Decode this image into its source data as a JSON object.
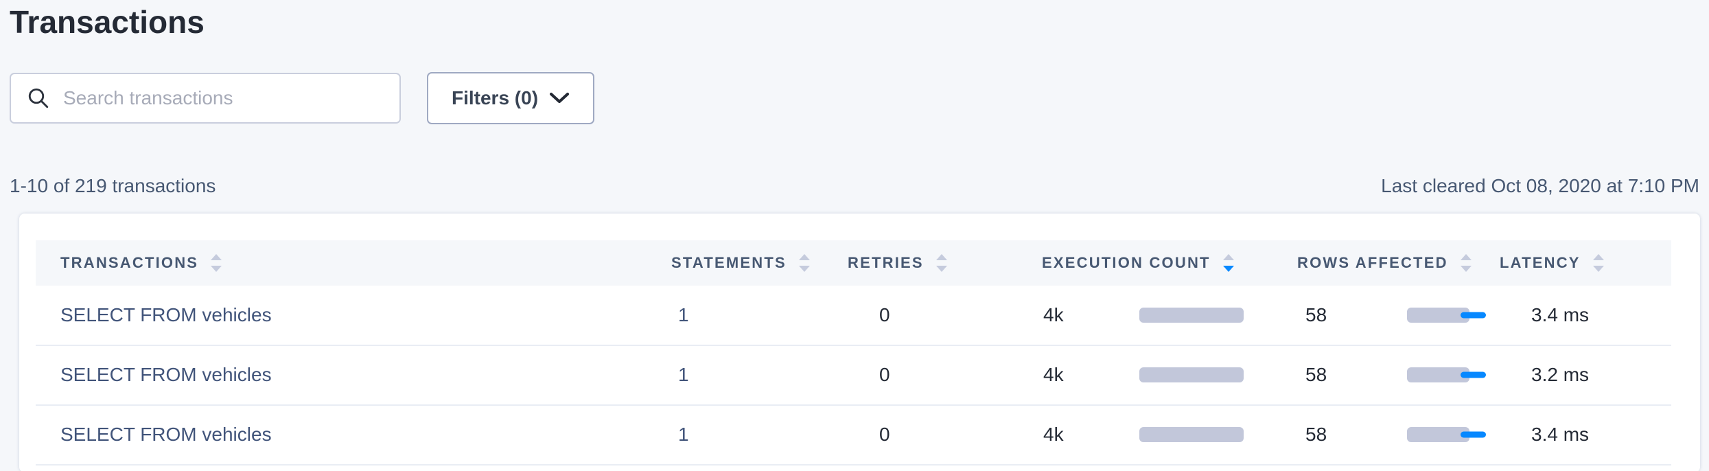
{
  "page": {
    "title": "Transactions"
  },
  "search": {
    "placeholder": "Search transactions",
    "value": "",
    "icon": "magnifier"
  },
  "filters": {
    "label": "Filters (0)",
    "icon": "chevron-down"
  },
  "results": {
    "count_text": "1-10 of 219 transactions",
    "last_cleared": "Last cleared Oct 08, 2020 at 7:10 PM"
  },
  "table": {
    "columns": [
      {
        "label": "TRANSACTIONS",
        "sort": "none"
      },
      {
        "label": "STATEMENTS",
        "sort": "none"
      },
      {
        "label": "RETRIES",
        "sort": "none"
      },
      {
        "label": "EXECUTION COUNT",
        "sort": "desc"
      },
      {
        "label": "ROWS AFFECTED",
        "sort": "none"
      },
      {
        "label": "LATENCY",
        "sort": "none"
      }
    ],
    "rows": [
      {
        "transaction": "SELECT FROM vehicles",
        "statements": "1",
        "retries": "0",
        "execution_count": "4k",
        "execution_count_bar": 152,
        "rows_affected": "58",
        "rows_affected_bar": 91,
        "latency": "3.4 ms"
      },
      {
        "transaction": "SELECT FROM vehicles",
        "statements": "1",
        "retries": "0",
        "execution_count": "4k",
        "execution_count_bar": 152,
        "rows_affected": "58",
        "rows_affected_bar": 91,
        "latency": "3.2 ms"
      },
      {
        "transaction": "SELECT FROM vehicles",
        "statements": "1",
        "retries": "0",
        "execution_count": "4k",
        "execution_count_bar": 152,
        "rows_affected": "58",
        "rows_affected_bar": 91,
        "latency": "3.4 ms"
      }
    ]
  },
  "colors": {
    "accent_blue": "#0788ff",
    "bar_gray": "#c2c7da",
    "header_text": "#475872",
    "link_slate": "#41547a",
    "page_bg": "#f5f7fa",
    "body_text": "#242a35"
  }
}
